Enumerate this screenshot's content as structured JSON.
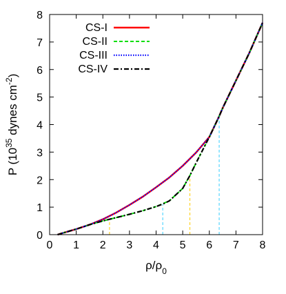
{
  "chart_data": {
    "type": "line",
    "xlabel": "ρ/ρ",
    "xlabel_sub": "0",
    "ylabel": "P (10",
    "ylabel_exp": "35",
    "ylabel_tail": " dynes cm",
    "ylabel_tail_exp": "-2",
    "ylabel_close": ")",
    "xlim": [
      0,
      8
    ],
    "ylim": [
      0,
      8
    ],
    "x_ticks": [
      0,
      1,
      2,
      3,
      4,
      5,
      6,
      7,
      8
    ],
    "y_ticks": [
      0,
      1,
      2,
      3,
      4,
      5,
      6,
      7,
      8
    ],
    "grid": false,
    "legend_position": "top-left",
    "series": [
      {
        "name": "CS-I",
        "color": "#ff0000",
        "style": "solid",
        "x": [
          0.3,
          0.5,
          1.0,
          1.5,
          2.0,
          2.5,
          3.0,
          3.5,
          4.0,
          4.5,
          5.0,
          5.5,
          6.0,
          6.37,
          6.5,
          7.0,
          7.5,
          8.0
        ],
        "y": [
          0.0,
          0.06,
          0.2,
          0.36,
          0.56,
          0.8,
          1.08,
          1.38,
          1.72,
          2.08,
          2.5,
          2.98,
          3.55,
          4.3,
          4.6,
          5.6,
          6.6,
          7.7
        ]
      },
      {
        "name": "CS-II",
        "color": "#00dd00",
        "style": "dashed",
        "x": [
          0.3,
          0.5,
          1.0,
          1.5,
          2.0,
          2.25,
          2.5,
          3.0,
          3.5,
          4.0,
          4.5,
          5.0,
          5.27,
          5.5,
          6.0,
          6.37,
          6.5,
          7.0,
          7.5,
          8.0
        ],
        "y": [
          0.0,
          0.06,
          0.2,
          0.36,
          0.5,
          0.56,
          0.62,
          0.74,
          0.87,
          1.02,
          1.23,
          1.68,
          2.15,
          2.6,
          3.55,
          4.3,
          4.6,
          5.6,
          6.6,
          7.7
        ]
      },
      {
        "name": "CS-III",
        "color": "#0000ff",
        "style": "dotted",
        "x": [
          0.3,
          0.5,
          1.0,
          1.5,
          2.0,
          2.5,
          3.0,
          3.5,
          4.0,
          4.5,
          5.0,
          5.5,
          6.0,
          6.37,
          6.5,
          7.0,
          7.5,
          8.0
        ],
        "y": [
          0.0,
          0.06,
          0.2,
          0.36,
          0.56,
          0.8,
          1.08,
          1.38,
          1.72,
          2.08,
          2.5,
          2.98,
          3.55,
          4.3,
          4.6,
          5.6,
          6.6,
          7.7
        ]
      },
      {
        "name": "CS-IV",
        "color": "#000000",
        "style": "dashdot",
        "x": [
          0.3,
          0.5,
          1.0,
          1.5,
          2.0,
          2.25,
          2.5,
          3.0,
          3.5,
          4.0,
          4.25,
          4.5,
          5.0,
          5.27,
          5.5,
          6.0,
          6.37,
          6.5,
          7.0,
          7.5,
          8.0
        ],
        "y": [
          0.0,
          0.06,
          0.2,
          0.36,
          0.5,
          0.56,
          0.62,
          0.74,
          0.87,
          1.02,
          1.11,
          1.23,
          1.68,
          2.15,
          2.6,
          3.55,
          4.3,
          4.6,
          5.6,
          6.6,
          7.7
        ]
      }
    ],
    "vertical_markers": [
      {
        "x": 2.25,
        "y": 0.56,
        "color": "#ffcc00"
      },
      {
        "x": 5.27,
        "y": 2.15,
        "color": "#ffcc00"
      },
      {
        "x": 4.25,
        "y": 1.11,
        "color": "#33ccff"
      },
      {
        "x": 6.37,
        "y": 4.3,
        "color": "#33ccff"
      }
    ]
  }
}
